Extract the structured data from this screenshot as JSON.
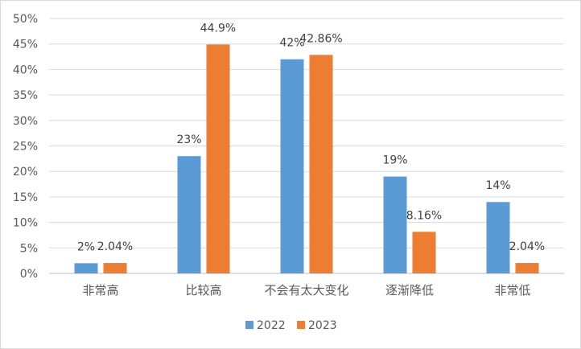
{
  "chart_data": {
    "type": "bar",
    "categories": [
      "非常高",
      "比较高",
      "不会有太大变化",
      "逐渐降低",
      "非常低"
    ],
    "series": [
      {
        "name": "2022",
        "color": "#5b9bd5",
        "values": [
          2,
          23,
          42,
          19,
          14
        ],
        "labels": [
          "2%",
          "23%",
          "42%",
          "19%",
          "14%"
        ]
      },
      {
        "name": "2023",
        "color": "#ed7d31",
        "values": [
          2.04,
          44.9,
          42.86,
          8.16,
          2.04
        ],
        "labels": [
          "2.04%",
          "44.9%",
          "42.86%",
          "8.16%",
          "2.04%"
        ]
      }
    ],
    "ylim": [
      0,
      50
    ],
    "yticks": [
      "0%",
      "5%",
      "10%",
      "15%",
      "20%",
      "25%",
      "30%",
      "35%",
      "40%",
      "45%",
      "50%"
    ],
    "grid": true,
    "legend_position": "bottom"
  }
}
